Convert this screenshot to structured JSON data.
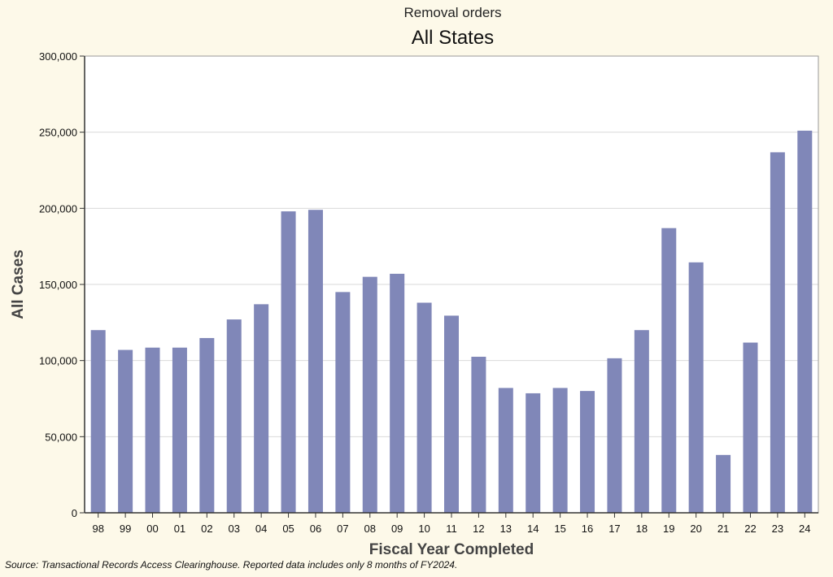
{
  "header": {
    "subtitle": "Removal orders",
    "title": "All States"
  },
  "footer": {
    "source": "Source: Transactional Records Access Clearinghouse. Reported data includes only 8 months of FY2024."
  },
  "colors": {
    "bar": "#8087b8",
    "grid": "#d9d9d9",
    "plot_background": "#ffffff",
    "page_background": "#fdf9e9"
  },
  "chart_data": {
    "type": "bar",
    "title": "All States",
    "subtitle": "Removal orders",
    "xlabel": "Fiscal Year Completed",
    "ylabel": "All Cases",
    "ylim": [
      0,
      300000
    ],
    "yticks": [
      0,
      50000,
      100000,
      150000,
      200000,
      250000,
      300000
    ],
    "ytick_labels": [
      "0",
      "50,000",
      "100,000",
      "150,000",
      "200,000",
      "250,000",
      "300,000"
    ],
    "grid": true,
    "categories": [
      "98",
      "99",
      "00",
      "01",
      "02",
      "03",
      "04",
      "05",
      "06",
      "07",
      "08",
      "09",
      "10",
      "11",
      "12",
      "13",
      "14",
      "15",
      "16",
      "17",
      "18",
      "19",
      "20",
      "21",
      "22",
      "23",
      "24"
    ],
    "values": [
      120000,
      107000,
      108500,
      108500,
      114800,
      127000,
      137000,
      198000,
      199000,
      145000,
      155000,
      157000,
      138000,
      129500,
      102500,
      82000,
      78500,
      82000,
      80000,
      101500,
      120000,
      187000,
      164500,
      38000,
      111800,
      236800,
      251000
    ]
  }
}
